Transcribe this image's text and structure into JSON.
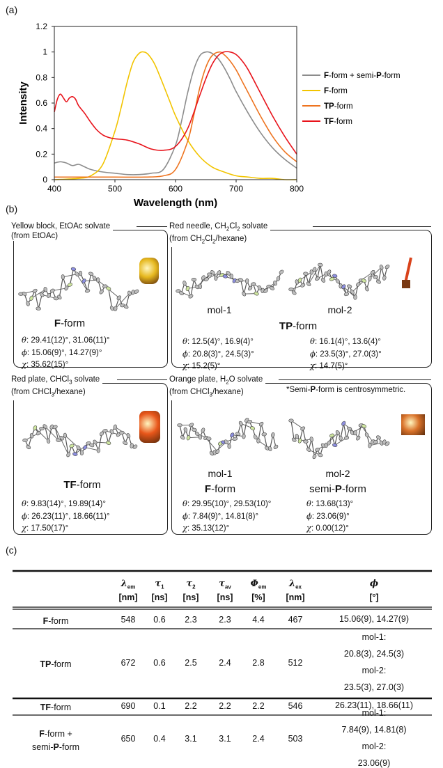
{
  "panel_a": {
    "label": "(a)",
    "chart_data": {
      "type": "line",
      "xlabel": "Wavelength (nm)",
      "ylabel": "Intensity",
      "xlim": [
        400,
        800
      ],
      "ylim": [
        0,
        1.2
      ],
      "xticks": [
        "400",
        "500",
        "600",
        "700",
        "800"
      ],
      "yticks": [
        "0",
        "0.2",
        "0.4",
        "0.6",
        "0.8",
        "1",
        "1.2"
      ],
      "legend_position": "right",
      "series": [
        {
          "name_bold_1": "F",
          "name_mid": "-form + semi-",
          "name_bold_2": "P",
          "name_end": "-form",
          "color": "#8c8c8c",
          "x": [
            400,
            410,
            420,
            430,
            440,
            450,
            460,
            480,
            500,
            520,
            540,
            560,
            580,
            600,
            610,
            620,
            630,
            640,
            650,
            660,
            670,
            680,
            690,
            700,
            720,
            740,
            760,
            780,
            800
          ],
          "values": [
            0.13,
            0.14,
            0.13,
            0.11,
            0.12,
            0.1,
            0.08,
            0.06,
            0.05,
            0.04,
            0.04,
            0.05,
            0.08,
            0.27,
            0.46,
            0.68,
            0.86,
            0.97,
            1.0,
            0.99,
            0.95,
            0.88,
            0.79,
            0.69,
            0.52,
            0.37,
            0.25,
            0.16,
            0.09
          ]
        },
        {
          "name_bold_1": "F",
          "name_mid": "-form",
          "name_bold_2": "",
          "name_end": "",
          "color": "#f2c400",
          "x": [
            400,
            440,
            460,
            480,
            500,
            510,
            520,
            530,
            540,
            548,
            555,
            565,
            575,
            590,
            600,
            620,
            640,
            660,
            680,
            700,
            720,
            740,
            760,
            780,
            800
          ],
          "values": [
            0.0,
            0.01,
            0.03,
            0.12,
            0.38,
            0.56,
            0.76,
            0.92,
            0.99,
            1.0,
            0.98,
            0.91,
            0.8,
            0.62,
            0.5,
            0.31,
            0.18,
            0.1,
            0.06,
            0.03,
            0.02,
            0.01,
            0.01,
            0.0,
            0.0
          ]
        },
        {
          "name_bold_1": "TP",
          "name_mid": "-form",
          "name_bold_2": "",
          "name_end": "",
          "color": "#ee7420",
          "x": [
            400,
            450,
            500,
            550,
            580,
            600,
            620,
            630,
            640,
            650,
            660,
            672,
            680,
            690,
            700,
            710,
            720,
            740,
            760,
            780,
            800
          ],
          "values": [
            0.02,
            0.02,
            0.02,
            0.02,
            0.03,
            0.08,
            0.3,
            0.5,
            0.72,
            0.88,
            0.97,
            1.0,
            0.98,
            0.93,
            0.86,
            0.77,
            0.68,
            0.5,
            0.34,
            0.22,
            0.14
          ]
        },
        {
          "name_bold_1": "TF",
          "name_mid": "-form",
          "name_bold_2": "",
          "name_end": "",
          "color": "#e8131b",
          "x": [
            400,
            405,
            410,
            415,
            420,
            425,
            430,
            435,
            440,
            450,
            460,
            470,
            480,
            490,
            500,
            520,
            540,
            560,
            580,
            600,
            620,
            640,
            650,
            660,
            670,
            680,
            690,
            700,
            710,
            720,
            740,
            760,
            780,
            800
          ],
          "values": [
            0.53,
            0.63,
            0.67,
            0.64,
            0.61,
            0.64,
            0.65,
            0.63,
            0.58,
            0.52,
            0.45,
            0.39,
            0.35,
            0.33,
            0.32,
            0.31,
            0.28,
            0.24,
            0.23,
            0.26,
            0.4,
            0.66,
            0.79,
            0.9,
            0.97,
            1.0,
            1.0,
            0.98,
            0.93,
            0.86,
            0.68,
            0.5,
            0.34,
            0.2
          ]
        }
      ]
    }
  },
  "panel_b": {
    "label": "(b)",
    "boxes": [
      {
        "title_line1": "Yellow block, EtOAc solvate",
        "title_line2": "(from EtOAc)",
        "form_bold": "F",
        "form_rest": "-form",
        "theta": "29.41(12)°, 31.06(11)°",
        "phi": "15.06(9)°, 14.27(9)°",
        "chi": "35.62(15)°",
        "crystal_color": "#e6b81e"
      },
      {
        "title_line1_pre": "Red needle, CH",
        "title_line1_sub1": "2",
        "title_line1_mid": "Cl",
        "title_line1_sub2": "2",
        "title_line1_post": " solvate",
        "title_line2_pre": "(from CH",
        "title_line2_sub1": "2",
        "title_line2_mid": "Cl",
        "title_line2_sub2": "2",
        "title_line2_post": "/hexane)",
        "mol1": "mol-1",
        "mol2": "mol-2",
        "form_bold": "TP",
        "form_rest": "-form",
        "theta1": "12.5(4)°, 16.9(4)°",
        "phi1": "20.8(3)°, 24.5(3)°",
        "chi1": "15.2(5)°",
        "theta2": "16.1(4)°, 13.6(4)°",
        "phi2": "23.5(3)°, 27.0(3)°",
        "chi2": "14.7(5)°",
        "crystal_color": "#d9431b"
      },
      {
        "title_line1_pre": "Red plate, CHCl",
        "title_line1_sub": "3",
        "title_line1_post": " solvate",
        "title_line2_pre": "(from CHCl",
        "title_line2_sub": "3",
        "title_line2_post": "/hexane)",
        "form_bold": "TF",
        "form_rest": "-form",
        "theta": "9.83(14)°, 19.89(14)°",
        "phi": "26.23(11)°, 18.66(11)°",
        "chi": "17.50(17)°",
        "crystal_color": "#e8561a"
      },
      {
        "title_line1_pre": "Orange plate, H",
        "title_line1_sub": "2",
        "title_line1_post": "O solvate",
        "title_line2_pre": "(from CHCl",
        "title_line2_sub": "3",
        "title_line2_post": "/hexane)",
        "note_pre": "*Semi-",
        "note_bold": "P",
        "note_post": "-form is centrosymmetric.",
        "mol1": "mol-1",
        "mol2": "mol-2",
        "form1_bold": "F",
        "form1_rest": "-form",
        "form2_pre": "semi-",
        "form2_bold": "P",
        "form2_rest": "-form",
        "theta1": "29.95(10)°, 29.53(10)°",
        "phi1": "7.84(9)°, 14.81(8)°",
        "chi1": "35.13(12)°",
        "theta2": "13.68(13)°",
        "phi2": "23.06(9)°",
        "chi2": "0.00(12)°",
        "crystal_color": "#d9722a"
      }
    ],
    "sym_theta": "θ",
    "sym_phi": "ϕ",
    "sym_chi": "χ",
    "colon": ": "
  },
  "panel_c": {
    "label": "(c)",
    "headers": [
      {
        "sym": "λ",
        "sub": "em",
        "unit": "[nm]"
      },
      {
        "sym": "τ",
        "sub": "1",
        "unit": "[ns]"
      },
      {
        "sym": "τ",
        "sub": "2",
        "unit": "[ns]"
      },
      {
        "sym": "τ",
        "sub": "av",
        "unit": "[ns]"
      },
      {
        "sym": "Φ",
        "sub": "em",
        "unit": "[%]"
      },
      {
        "sym": "λ",
        "sub": "ex",
        "unit": "[nm]"
      },
      {
        "sym": "ϕ",
        "sub": "",
        "unit": "[°]"
      }
    ],
    "rows": [
      {
        "name_bold": "F",
        "name_rest": "-form",
        "cells": [
          "548",
          "0.6",
          "2.3",
          "2.3",
          "4.4",
          "467"
        ],
        "phi_lines": [
          "15.06(9), 14.27(9)"
        ]
      },
      {
        "name_bold": "TP",
        "name_rest": "-form",
        "cells": [
          "672",
          "0.6",
          "2.5",
          "2.4",
          "2.8",
          "512"
        ],
        "phi_lines": [
          "mol-1:",
          "20.8(3), 24.5(3)",
          "mol-2:",
          "23.5(3), 27.0(3)"
        ]
      },
      {
        "name_bold": "TF",
        "name_rest": "-form",
        "cells": [
          "690",
          "0.1",
          "2.2",
          "2.2",
          "2.2",
          "546"
        ],
        "phi_lines": [
          "26.23(11), 18.66(11)"
        ]
      },
      {
        "name_l1_bold": "F",
        "name_l1_rest": "-form +",
        "name_l2_pre": "semi-",
        "name_l2_bold": "P",
        "name_l2_rest": "-form",
        "cells": [
          "650",
          "0.4",
          "3.1",
          "3.1",
          "2.4",
          "503"
        ],
        "phi_lines": [
          "mol-1:",
          "7.84(9), 14.81(8)",
          "mol-2:",
          "23.06(9)"
        ]
      }
    ]
  }
}
